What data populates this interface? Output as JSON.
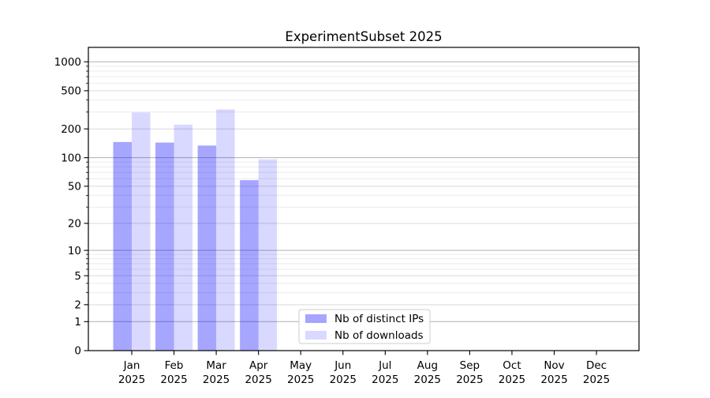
{
  "chart_data": {
    "type": "bar",
    "title": "ExperimentSubset 2025",
    "categories": [
      "Jan",
      "Feb",
      "Mar",
      "Apr",
      "May",
      "Jun",
      "Jul",
      "Aug",
      "Sep",
      "Oct",
      "Nov",
      "Dec"
    ],
    "year": "2025",
    "series": [
      {
        "name": "Nb of distinct IPs",
        "color": "rgba(0,0,255,0.35)",
        "values": [
          146,
          144,
          134,
          58,
          0,
          0,
          0,
          0,
          0,
          0,
          0,
          0
        ]
      },
      {
        "name": "Nb of downloads",
        "color": "rgba(0,0,255,0.15)",
        "values": [
          297,
          222,
          320,
          96,
          0,
          0,
          0,
          0,
          0,
          0,
          0,
          0
        ]
      }
    ],
    "yscale": "log1p",
    "yticks": [
      0,
      1,
      2,
      5,
      10,
      20,
      50,
      100,
      200,
      500,
      1000
    ],
    "ylim": [
      0,
      1400
    ],
    "grid": true,
    "legend_position": "lower-center",
    "colors": {
      "background": "#ffffff",
      "grid_major": "#b0b0b0",
      "grid_mid": "#d9d9d9",
      "grid_minor": "#ebebeb",
      "spine": "#000000",
      "text": "#000000",
      "legend_border": "#cccccc"
    }
  }
}
